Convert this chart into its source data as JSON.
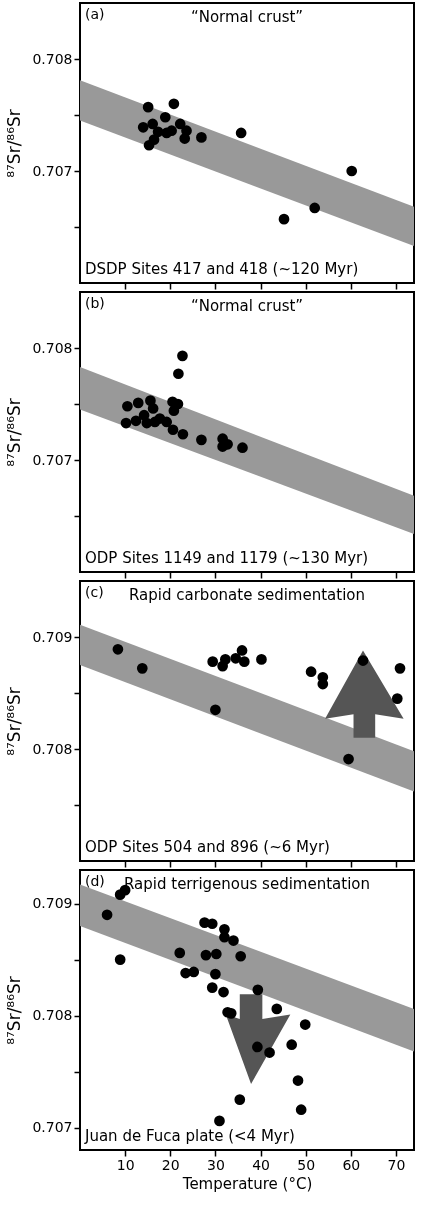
{
  "chart_data": [
    {
      "type": "scatter",
      "ylabel": "⁸⁷Sr/⁸⁶Sr",
      "annotations": [
        "(a)",
        "“Normal crust”",
        "DSDP Sites 417 and 418 (~120 Myr)"
      ],
      "xlim": [
        0,
        74
      ],
      "ylim": [
        0.706,
        0.7085
      ],
      "xticks": [
        10,
        20,
        30,
        40,
        50,
        60,
        70
      ],
      "yticks": [
        {
          "value": 0.7065,
          "label": null
        },
        0.707,
        {
          "value": 0.7075,
          "label": null
        },
        0.708
      ],
      "tick_labels": "y",
      "grid": false,
      "series": [
        {
          "type": "line",
          "color": "#999999",
          "x": [
            0,
            74
          ],
          "values": [
            null,
            null
          ],
          "lower": [
            0.70745,
            0.70633
          ],
          "upper": [
            0.70781,
            0.70668
          ]
        },
        {
          "color": "#000000",
          "marker": "circle",
          "x": [
            15.1,
            20.8,
            14.0,
            16.1,
            18.9,
            15.3,
            16.4,
            19.2,
            22.2,
            23.6,
            23.2,
            26.9,
            35.7,
            60.2,
            45.2,
            52.0,
            20.3,
            17.3
          ],
          "values": [
            0.70757,
            0.7076,
            0.70739,
            0.70742,
            0.70748,
            0.70723,
            0.70728,
            0.70734,
            0.70742,
            0.70736,
            0.70729,
            0.7073,
            0.70734,
            0.707,
            0.70657,
            0.70667,
            0.70736,
            0.70735
          ]
        }
      ]
    },
    {
      "type": "scatter",
      "ylabel": "⁸⁷Sr/⁸⁶Sr",
      "annotations": [
        "(b)",
        "“Normal crust”",
        "ODP Sites 1149 and 1179 (~130 Myr)"
      ],
      "xlim": [
        0,
        74
      ],
      "ylim": [
        0.706,
        0.7085
      ],
      "xticks": [
        10,
        20,
        30,
        40,
        50,
        60,
        70
      ],
      "yticks": [
        {
          "value": 0.7065,
          "label": null
        },
        0.707,
        {
          "value": 0.7075,
          "label": null
        },
        0.708
      ],
      "tick_labels": "y",
      "grid": false,
      "series": [
        {
          "type": "line",
          "color": "#999999",
          "x": [
            0,
            74
          ],
          "values": [
            null,
            null
          ],
          "lower": [
            0.70745,
            0.70634
          ],
          "upper": [
            0.70783,
            0.70668
          ]
        },
        {
          "color": "#000000",
          "marker": "circle",
          "x": [
            22.7,
            21.8,
            10.5,
            10.2,
            12.4,
            12.9,
            15.6,
            16.2,
            14.2,
            16.6,
            17.7,
            19.2,
            20.5,
            21.7,
            20.8,
            20.6,
            22.8,
            26.9,
            31.6,
            31.6,
            32.7,
            36.0,
            14.8
          ],
          "values": [
            0.70793,
            0.70777,
            0.70748,
            0.70733,
            0.70735,
            0.70751,
            0.70753,
            0.70746,
            0.7074,
            0.70734,
            0.70737,
            0.70734,
            0.70752,
            0.7075,
            0.70744,
            0.70727,
            0.70723,
            0.70718,
            0.70719,
            0.70712,
            0.70714,
            0.70711,
            0.70733
          ]
        }
      ]
    },
    {
      "type": "scatter",
      "ylabel": "⁸⁷Sr/⁸⁶Sr",
      "annotations": [
        "(c)",
        "Rapid carbonate sedimentation",
        "ODP Sites 504 and 896 (~6 Myr)"
      ],
      "xlim": [
        0,
        74
      ],
      "ylim": [
        0.707,
        0.7095
      ],
      "xticks": [
        10,
        20,
        30,
        40,
        50,
        60,
        70
      ],
      "yticks": [
        {
          "value": 0.7075,
          "label": null
        },
        0.708,
        {
          "value": 0.7085,
          "label": null
        },
        0.709
      ],
      "tick_labels": "y",
      "grid": false,
      "series": [
        {
          "type": "line",
          "color": "#999999",
          "x": [
            0,
            74
          ],
          "values": [
            null,
            null
          ],
          "lower": [
            0.70875,
            0.70762
          ],
          "upper": [
            0.70911,
            0.70798
          ]
        },
        {
          "color": "#000000",
          "marker": "circle",
          "x": [
            8.4,
            13.8,
            29.4,
            31.6,
            32.2,
            34.5,
            35.9,
            36.4,
            40.2,
            30.0,
            51.2,
            53.8,
            53.8,
            62.7,
            70.9,
            70.3,
            59.5
          ],
          "values": [
            0.70889,
            0.70872,
            0.70878,
            0.70874,
            0.7088,
            0.70881,
            0.70888,
            0.70878,
            0.7088,
            0.70835,
            0.70869,
            0.70864,
            0.70858,
            0.70879,
            0.70872,
            0.70845,
            0.70791
          ]
        }
      ]
    },
    {
      "type": "scatter",
      "xlabel": "Temperature (°C)",
      "ylabel": "⁸⁷Sr/⁸⁶Sr",
      "annotations": [
        "(d)",
        "Rapid terrigenous sedimentation",
        "Juan de Fuca plate (<4 Myr)"
      ],
      "xlim": [
        0,
        74
      ],
      "ylim": [
        0.7068,
        0.7093
      ],
      "xticks": [
        10,
        20,
        30,
        40,
        50,
        60,
        70
      ],
      "yticks": [
        0.707,
        {
          "value": 0.7075,
          "label": null
        },
        0.708,
        {
          "value": 0.7085,
          "label": null
        },
        0.709
      ],
      "grid": false,
      "series": [
        {
          "type": "line",
          "color": "#999999",
          "x": [
            0,
            74
          ],
          "values": [
            null,
            null
          ],
          "lower": [
            0.7088,
            0.70768
          ],
          "upper": [
            0.70917,
            0.70806
          ]
        },
        {
          "color": "#000000",
          "marker": "circle",
          "x": [
            8.9,
            10.0,
            6.0,
            8.9,
            22.1,
            27.6,
            29.3,
            32.0,
            32.0,
            34.0,
            27.9,
            30.2,
            35.6,
            23.4,
            25.2,
            30.0,
            29.3,
            31.8,
            39.4,
            32.7,
            33.5,
            43.6,
            49.9,
            46.9,
            39.3,
            42.0,
            48.3,
            35.4,
            49.0,
            30.9
          ],
          "values": [
            0.70908,
            0.70912,
            0.7089,
            0.7085,
            0.70856,
            0.70883,
            0.70882,
            0.70877,
            0.7087,
            0.70867,
            0.70854,
            0.70855,
            0.70853,
            0.70838,
            0.70839,
            0.70837,
            0.70825,
            0.70821,
            0.70823,
            0.70803,
            0.70802,
            0.70806,
            0.70792,
            0.70774,
            0.70772,
            0.70767,
            0.70742,
            0.70725,
            0.70716,
            0.70706
          ]
        }
      ]
    }
  ]
}
